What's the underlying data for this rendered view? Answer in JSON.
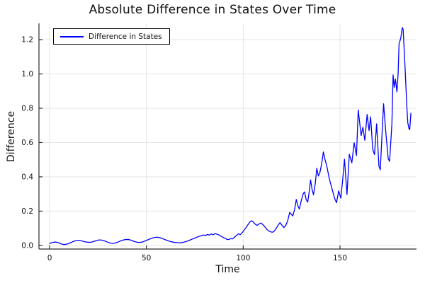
{
  "figure": {
    "background": "#ffffff"
  },
  "chart_data": {
    "type": "line",
    "title": "Absolute Difference in States Over Time",
    "xlabel": "Time",
    "ylabel": "Difference",
    "xlim": [
      -5.5,
      189.5
    ],
    "ylim": [
      -0.021,
      1.295
    ],
    "x_ticks": [
      0,
      50,
      100,
      150
    ],
    "x_tick_labels": [
      "0",
      "50",
      "100",
      "150"
    ],
    "y_ticks": [
      0.0,
      0.2,
      0.4,
      0.6,
      0.8,
      1.0,
      1.2
    ],
    "y_tick_labels": [
      "0.0",
      "0.2",
      "0.4",
      "0.6",
      "0.8",
      "1.0",
      "1.2"
    ],
    "grid": true,
    "grid_color": "#e5e5e5",
    "spine_color": "#2b2b2b",
    "legend_position": "top-left",
    "series": [
      {
        "name": "Difference in States",
        "color": "#0000ff",
        "points": [
          [
            0,
            0.012
          ],
          [
            1.5,
            0.017
          ],
          [
            3,
            0.02
          ],
          [
            4.5,
            0.016
          ],
          [
            6,
            0.009
          ],
          [
            7.5,
            0.005
          ],
          [
            9,
            0.008
          ],
          [
            10.5,
            0.014
          ],
          [
            12,
            0.022
          ],
          [
            13.5,
            0.028
          ],
          [
            15,
            0.03
          ],
          [
            16.5,
            0.027
          ],
          [
            18,
            0.022
          ],
          [
            19.5,
            0.019
          ],
          [
            21,
            0.018
          ],
          [
            22.5,
            0.022
          ],
          [
            24,
            0.028
          ],
          [
            25.5,
            0.032
          ],
          [
            27,
            0.031
          ],
          [
            28.5,
            0.026
          ],
          [
            30,
            0.019
          ],
          [
            31.5,
            0.013
          ],
          [
            33,
            0.012
          ],
          [
            34.5,
            0.016
          ],
          [
            36,
            0.023
          ],
          [
            37.5,
            0.03
          ],
          [
            39,
            0.034
          ],
          [
            40.5,
            0.035
          ],
          [
            42,
            0.031
          ],
          [
            43.5,
            0.024
          ],
          [
            45,
            0.019
          ],
          [
            46.5,
            0.017
          ],
          [
            48,
            0.02
          ],
          [
            49.5,
            0.027
          ],
          [
            51,
            0.034
          ],
          [
            52.5,
            0.041
          ],
          [
            54,
            0.046
          ],
          [
            55.5,
            0.048
          ],
          [
            57,
            0.045
          ],
          [
            58.5,
            0.039
          ],
          [
            60,
            0.032
          ],
          [
            61.5,
            0.026
          ],
          [
            63,
            0.021
          ],
          [
            64.5,
            0.018
          ],
          [
            66,
            0.016
          ],
          [
            67.5,
            0.015
          ],
          [
            69,
            0.018
          ],
          [
            70.5,
            0.023
          ],
          [
            72,
            0.029
          ],
          [
            73.5,
            0.036
          ],
          [
            75,
            0.043
          ],
          [
            76.5,
            0.05
          ],
          [
            78,
            0.056
          ],
          [
            79.5,
            0.061
          ],
          [
            80.5,
            0.058
          ],
          [
            81.5,
            0.064
          ],
          [
            82.5,
            0.06
          ],
          [
            83.5,
            0.067
          ],
          [
            84.5,
            0.062
          ],
          [
            85.5,
            0.069
          ],
          [
            86.5,
            0.065
          ],
          [
            87.5,
            0.061
          ],
          [
            88.5,
            0.054
          ],
          [
            89.5,
            0.048
          ],
          [
            90.5,
            0.042
          ],
          [
            91.5,
            0.036
          ],
          [
            92.5,
            0.034
          ],
          [
            93.5,
            0.04
          ],
          [
            94.5,
            0.038
          ],
          [
            95.5,
            0.048
          ],
          [
            96.5,
            0.058
          ],
          [
            97.5,
            0.068
          ],
          [
            98.5,
            0.063
          ],
          [
            99.5,
            0.075
          ],
          [
            100.5,
            0.09
          ],
          [
            101.5,
            0.105
          ],
          [
            102.5,
            0.122
          ],
          [
            103.5,
            0.138
          ],
          [
            104.3,
            0.144
          ],
          [
            105.2,
            0.136
          ],
          [
            106.2,
            0.124
          ],
          [
            107.2,
            0.117
          ],
          [
            108.2,
            0.126
          ],
          [
            109.2,
            0.131
          ],
          [
            110.2,
            0.121
          ],
          [
            111.2,
            0.108
          ],
          [
            112.2,
            0.094
          ],
          [
            113.2,
            0.084
          ],
          [
            114.2,
            0.079
          ],
          [
            115.2,
            0.077
          ],
          [
            116.2,
            0.086
          ],
          [
            117.2,
            0.102
          ],
          [
            118.2,
            0.121
          ],
          [
            119,
            0.133
          ],
          [
            120,
            0.118
          ],
          [
            121,
            0.104
          ],
          [
            122,
            0.117
          ],
          [
            123,
            0.145
          ],
          [
            124,
            0.193
          ],
          [
            124.8,
            0.182
          ],
          [
            125.6,
            0.172
          ],
          [
            126.6,
            0.212
          ],
          [
            127.4,
            0.268
          ],
          [
            128.2,
            0.232
          ],
          [
            129,
            0.212
          ],
          [
            130,
            0.262
          ],
          [
            131,
            0.302
          ],
          [
            131.7,
            0.312
          ],
          [
            132.5,
            0.268
          ],
          [
            133.3,
            0.252
          ],
          [
            134.1,
            0.315
          ],
          [
            134.8,
            0.382
          ],
          [
            135.5,
            0.33
          ],
          [
            136.3,
            0.295
          ],
          [
            137.2,
            0.36
          ],
          [
            138,
            0.45
          ],
          [
            138.8,
            0.405
          ],
          [
            139.6,
            0.425
          ],
          [
            140.5,
            0.475
          ],
          [
            141.4,
            0.545
          ],
          [
            142.3,
            0.498
          ],
          [
            143.3,
            0.456
          ],
          [
            144.4,
            0.392
          ],
          [
            145.4,
            0.35
          ],
          [
            146.4,
            0.308
          ],
          [
            147.3,
            0.272
          ],
          [
            148.2,
            0.249
          ],
          [
            149.3,
            0.318
          ],
          [
            150.4,
            0.276
          ],
          [
            151.4,
            0.385
          ],
          [
            152.3,
            0.503
          ],
          [
            153.6,
            0.297
          ],
          [
            154.8,
            0.531
          ],
          [
            156.1,
            0.482
          ],
          [
            157.3,
            0.599
          ],
          [
            158.5,
            0.524
          ],
          [
            159.4,
            0.79
          ],
          [
            160.9,
            0.641
          ],
          [
            161.8,
            0.689
          ],
          [
            162.8,
            0.613
          ],
          [
            164,
            0.764
          ],
          [
            165,
            0.67
          ],
          [
            165.8,
            0.75
          ],
          [
            166.9,
            0.56
          ],
          [
            167.8,
            0.53
          ],
          [
            168.9,
            0.709
          ],
          [
            170.1,
            0.462
          ],
          [
            170.8,
            0.441
          ],
          [
            171.9,
            0.696
          ],
          [
            172.5,
            0.826
          ],
          [
            173.8,
            0.64
          ],
          [
            174.9,
            0.505
          ],
          [
            175.6,
            0.49
          ],
          [
            176.8,
            0.71
          ],
          [
            177.4,
            0.994
          ],
          [
            178,
            0.922
          ],
          [
            178.6,
            0.97
          ],
          [
            179.4,
            0.895
          ],
          [
            180,
            1.0
          ],
          [
            180.5,
            1.177
          ],
          [
            180.9,
            1.19
          ],
          [
            181.4,
            1.21
          ],
          [
            181.9,
            1.252
          ],
          [
            182.2,
            1.27
          ],
          [
            182.6,
            1.26
          ],
          [
            183,
            1.17
          ],
          [
            183.5,
            1.06
          ],
          [
            184,
            0.936
          ],
          [
            184.5,
            0.812
          ],
          [
            185,
            0.716
          ],
          [
            185.6,
            0.682
          ],
          [
            186,
            0.675
          ],
          [
            186.6,
            0.771
          ]
        ]
      }
    ]
  },
  "legend": {
    "label": "Difference in States"
  }
}
